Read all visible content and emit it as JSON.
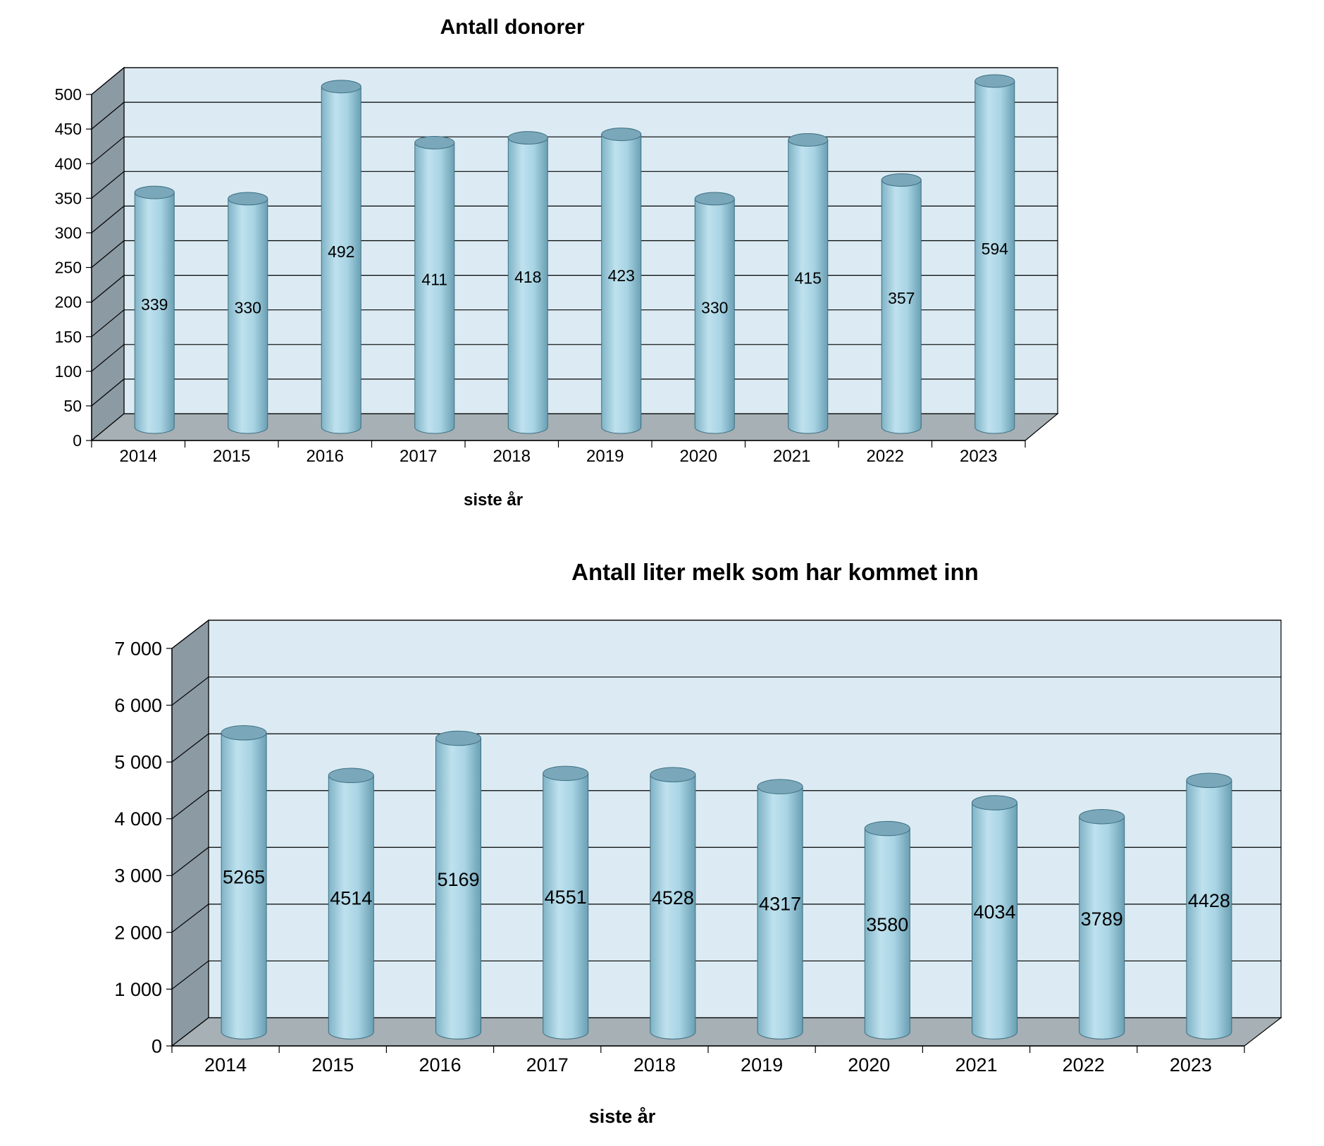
{
  "colors": {
    "back_wall": "#dcebf3",
    "side_wall": "#8c9aa3",
    "floor": "#a6b0b5",
    "bar_light": "#bfe1ee",
    "bar_mid": "#a8d4e4",
    "bar_dark": "#6a9fb3",
    "bar_top": "#7aa7ba",
    "grid": "#000000"
  },
  "chart_data": [
    {
      "type": "bar",
      "style": "3d-cylinder",
      "title": "Antall donorer",
      "xlabel": "siste år",
      "ylabel": "",
      "categories": [
        "2014",
        "2015",
        "2016",
        "2017",
        "2018",
        "2019",
        "2020",
        "2021",
        "2022",
        "2023"
      ],
      "values": [
        339,
        330,
        492,
        411,
        418,
        423,
        330,
        415,
        357,
        594
      ],
      "data_labels": [
        "339",
        "330",
        "492",
        "411",
        "418",
        "423",
        "330",
        "415",
        "357",
        "594"
      ],
      "ylim": [
        0,
        500
      ],
      "yticks": [
        "0",
        "50",
        "100",
        "150",
        "200",
        "250",
        "300",
        "350",
        "400",
        "450",
        "500"
      ],
      "grid": true,
      "legend": "none"
    },
    {
      "type": "bar",
      "style": "3d-cylinder",
      "title": "Antall liter melk som har kommet inn",
      "xlabel": "siste år",
      "ylabel": "",
      "categories": [
        "2014",
        "2015",
        "2016",
        "2017",
        "2018",
        "2019",
        "2020",
        "2021",
        "2022",
        "2023"
      ],
      "values": [
        5265,
        4514,
        5169,
        4551,
        4528,
        4317,
        3580,
        4034,
        3789,
        4428
      ],
      "data_labels": [
        "5265",
        "4514",
        "5169",
        "4551",
        "4528",
        "4317",
        "3580",
        "4034",
        "3789",
        "4428"
      ],
      "ylim": [
        0,
        7000
      ],
      "yticks": [
        "0",
        "1 000",
        "2 000",
        "3 000",
        "4 000",
        "5 000",
        "6 000",
        "7 000"
      ],
      "grid": true,
      "legend": "none"
    }
  ]
}
